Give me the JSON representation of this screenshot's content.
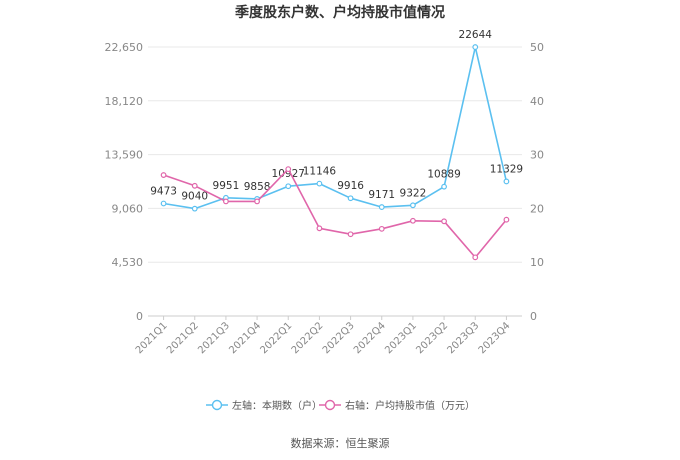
{
  "chart_data": {
    "type": "line",
    "title": "季度股东户数、户均持股市值情况",
    "categories": [
      "2021Q1",
      "2021Q2",
      "2021Q3",
      "2021Q4",
      "2022Q1",
      "2022Q2",
      "2022Q3",
      "2022Q4",
      "2023Q1",
      "2023Q2",
      "2023Q3",
      "2023Q4"
    ],
    "series": [
      {
        "name": "左轴：本期数（户）",
        "axis": "left",
        "color": "#5bc0f0",
        "values": [
          9473,
          9040,
          9951,
          9858,
          10927,
          11146,
          9916,
          9171,
          9322,
          10889,
          22644,
          11329
        ],
        "labels": [
          "9473",
          "9040",
          "9951",
          "9858",
          "10927",
          "11146",
          "9916",
          "9171",
          "9322",
          "10889",
          "22644",
          "11329"
        ]
      },
      {
        "name": "右轴：户均持股市值（万元）",
        "axis": "right",
        "color": "#e066aa",
        "values": [
          26.2,
          24.2,
          21.3,
          21.3,
          27.3,
          16.3,
          15.2,
          16.2,
          17.7,
          17.6,
          10.9,
          17.9
        ]
      }
    ],
    "left_axis": {
      "ylim": [
        0,
        22650
      ],
      "ticks": [
        0,
        4530,
        9060,
        13590,
        18120,
        22650
      ],
      "tick_labels": [
        "0",
        "4,530",
        "9,060",
        "13,590",
        "18,120",
        "22,650"
      ]
    },
    "right_axis": {
      "ylim": [
        0,
        50
      ],
      "ticks": [
        0,
        10,
        20,
        30,
        40,
        50
      ],
      "tick_labels": [
        "0",
        "10",
        "20",
        "30",
        "40",
        "50"
      ]
    },
    "grid": true,
    "legend_position": "bottom"
  },
  "source_text": "数据来源：恒生聚源"
}
